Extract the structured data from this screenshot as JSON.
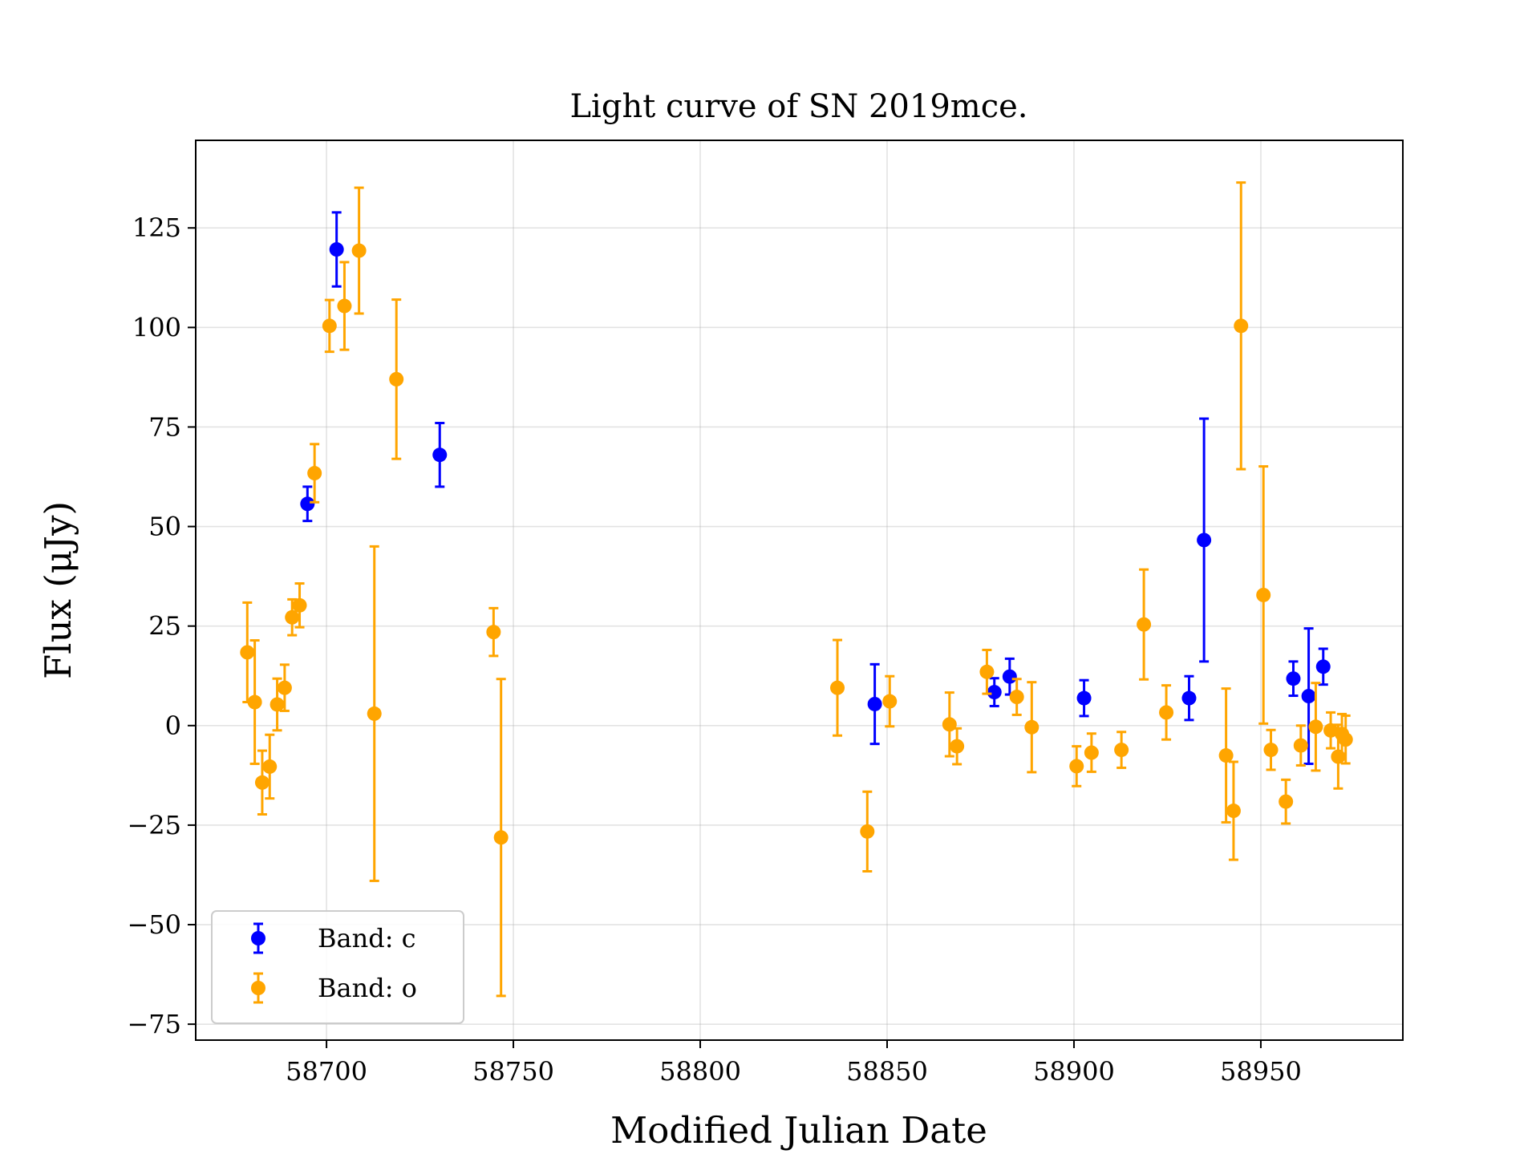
{
  "chart_data": {
    "type": "scatter",
    "title": "Light curve of SN 2019mce.",
    "xlabel": "Modified Julian Date",
    "ylabel": "Flux (μJy)",
    "xlim": [
      58665,
      58988
    ],
    "ylim": [
      -79,
      147
    ],
    "xticks": [
      58700,
      58750,
      58800,
      58850,
      58900,
      58950
    ],
    "yticks": [
      -75,
      -50,
      -25,
      0,
      25,
      50,
      75,
      100,
      125
    ],
    "ytick_labels": [
      "−75",
      "−50",
      "−25",
      "0",
      "25",
      "50",
      "75",
      "100",
      "125"
    ],
    "grid": true,
    "legend_position": "lower-left",
    "series": [
      {
        "name": "Band: c",
        "color": "#0000ff",
        "points": [
          {
            "x": 58694.9,
            "y": 55.7,
            "err": 4.3
          },
          {
            "x": 58702.7,
            "y": 119.6,
            "err": 9.3
          },
          {
            "x": 58730.3,
            "y": 68.0,
            "err": 8.0
          },
          {
            "x": 58846.7,
            "y": 5.4,
            "err": 10.0
          },
          {
            "x": 58878.7,
            "y": 8.4,
            "err": 3.5
          },
          {
            "x": 58882.8,
            "y": 12.3,
            "err": 4.5
          },
          {
            "x": 58902.7,
            "y": 6.9,
            "err": 4.5
          },
          {
            "x": 58930.8,
            "y": 6.9,
            "err": 5.5
          },
          {
            "x": 58934.8,
            "y": 46.6,
            "err": 30.5
          },
          {
            "x": 58958.7,
            "y": 11.8,
            "err": 4.3
          },
          {
            "x": 58962.8,
            "y": 7.4,
            "err": 17.0
          },
          {
            "x": 58966.7,
            "y": 14.8,
            "err": 4.5
          }
        ]
      },
      {
        "name": "Band: o",
        "color": "#ffa500",
        "points": [
          {
            "x": 58678.8,
            "y": 18.4,
            "err": 12.5
          },
          {
            "x": 58680.8,
            "y": 5.9,
            "err": 15.5
          },
          {
            "x": 58682.8,
            "y": -14.3,
            "err": 8.0
          },
          {
            "x": 58684.8,
            "y": -10.3,
            "err": 8.0
          },
          {
            "x": 58686.8,
            "y": 5.3,
            "err": 6.5
          },
          {
            "x": 58688.8,
            "y": 9.5,
            "err": 5.8
          },
          {
            "x": 58690.8,
            "y": 27.2,
            "err": 4.5
          },
          {
            "x": 58692.8,
            "y": 30.2,
            "err": 5.5
          },
          {
            "x": 58696.8,
            "y": 63.4,
            "err": 7.3
          },
          {
            "x": 58700.8,
            "y": 100.4,
            "err": 6.5
          },
          {
            "x": 58704.8,
            "y": 105.4,
            "err": 11.0
          },
          {
            "x": 58708.7,
            "y": 119.3,
            "err": 15.8
          },
          {
            "x": 58712.8,
            "y": 3.0,
            "err": 42.0
          },
          {
            "x": 58718.7,
            "y": 87.0,
            "err": 20.0
          },
          {
            "x": 58744.7,
            "y": 23.5,
            "err": 6.0
          },
          {
            "x": 58746.7,
            "y": -28.1,
            "err": 39.8
          },
          {
            "x": 58836.7,
            "y": 9.5,
            "err": 12.0
          },
          {
            "x": 58844.7,
            "y": -26.6,
            "err": 10.0
          },
          {
            "x": 58850.7,
            "y": 6.1,
            "err": 6.3
          },
          {
            "x": 58866.7,
            "y": 0.3,
            "err": 8.0
          },
          {
            "x": 58868.7,
            "y": -5.2,
            "err": 4.5
          },
          {
            "x": 58876.7,
            "y": 13.5,
            "err": 5.5
          },
          {
            "x": 58884.7,
            "y": 7.2,
            "err": 4.5
          },
          {
            "x": 58888.7,
            "y": -0.4,
            "err": 11.3
          },
          {
            "x": 58900.7,
            "y": -10.2,
            "err": 5.0
          },
          {
            "x": 58904.7,
            "y": -6.8,
            "err": 4.8
          },
          {
            "x": 58912.7,
            "y": -6.1,
            "err": 4.5
          },
          {
            "x": 58918.7,
            "y": 25.4,
            "err": 13.8
          },
          {
            "x": 58924.7,
            "y": 3.3,
            "err": 6.8
          },
          {
            "x": 58940.7,
            "y": -7.5,
            "err": 16.8
          },
          {
            "x": 58942.7,
            "y": -21.4,
            "err": 12.3
          },
          {
            "x": 58944.7,
            "y": 100.4,
            "err": 36.0
          },
          {
            "x": 58950.7,
            "y": 32.8,
            "err": 32.3
          },
          {
            "x": 58952.7,
            "y": -6.1,
            "err": 5.0
          },
          {
            "x": 58956.7,
            "y": -19.1,
            "err": 5.5
          },
          {
            "x": 58960.7,
            "y": -5.0,
            "err": 5.0
          },
          {
            "x": 58964.7,
            "y": -0.3,
            "err": 11.0
          },
          {
            "x": 58968.7,
            "y": -1.2,
            "err": 4.5
          },
          {
            "x": 58970.7,
            "y": -7.8,
            "err": 8.0
          },
          {
            "x": 58971.7,
            "y": -2.1,
            "err": 5.0
          },
          {
            "x": 58972.7,
            "y": -3.5,
            "err": 6.0
          }
        ]
      }
    ]
  }
}
